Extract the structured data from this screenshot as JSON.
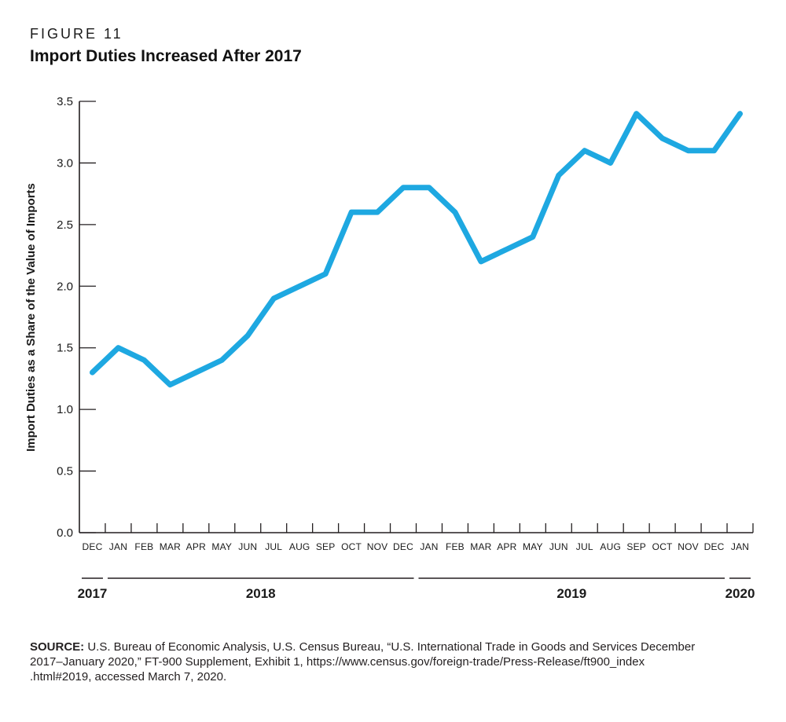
{
  "figure": {
    "label": "FIGURE 11",
    "title": "Import Duties Increased After 2017"
  },
  "chart_data": {
    "type": "line",
    "title": "Import Duties Increased After 2017",
    "ylabel": "Import  Duties as a Share of the Value of Imports",
    "xlabel": "",
    "ylim": [
      0.0,
      3.5
    ],
    "ytick_labels": [
      "0.0",
      "0.5",
      "1.0",
      "1.5",
      "2.0",
      "2.5",
      "3.0",
      "3.5"
    ],
    "grid": false,
    "legend": "none",
    "x_months": [
      "DEC",
      "JAN",
      "FEB",
      "MAR",
      "APR",
      "MAY",
      "JUN",
      "JUL",
      "AUG",
      "SEP",
      "OCT",
      "NOV",
      "DEC",
      "JAN",
      "FEB",
      "MAR",
      "APR",
      "MAY",
      "JUN",
      "JUL",
      "AUG",
      "SEP",
      "OCT",
      "NOV",
      "DEC",
      "JAN"
    ],
    "year_groups": [
      {
        "label": "2017",
        "start_month_index": 0,
        "end_month_index": 0
      },
      {
        "label": "2018",
        "start_month_index": 1,
        "end_month_index": 12
      },
      {
        "label": "2019",
        "start_month_index": 13,
        "end_month_index": 24
      },
      {
        "label": "2020",
        "start_month_index": 25,
        "end_month_index": 25
      }
    ],
    "values": [
      1.3,
      1.5,
      1.4,
      1.2,
      1.3,
      1.4,
      1.6,
      1.9,
      2.0,
      2.1,
      2.6,
      2.6,
      2.8,
      2.8,
      2.6,
      2.2,
      2.3,
      2.4,
      2.9,
      3.1,
      3.0,
      3.4,
      3.2,
      3.1,
      3.1,
      3.4
    ],
    "line_color": "#1EA8E1",
    "axis_color": "#231f20"
  },
  "source": {
    "label": "SOURCE:",
    "line1": "U.S. Bureau of Economic Analysis, U.S. Census Bureau, “U.S. International Trade in Goods and Services December",
    "line2": "2017–January 2020,” FT-900 Supplement, Exhibit 1, https://www.census.gov/foreign-trade/Press-Release/ft900_index",
    "line3": ".html#2019, accessed March 7, 2020."
  }
}
